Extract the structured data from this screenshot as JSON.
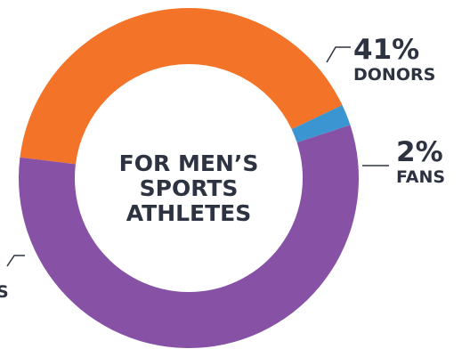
{
  "chart_data": {
    "type": "pie",
    "title": "",
    "center_label": [
      "FOR MEN’S",
      "SPORTS",
      "ATHLETES"
    ],
    "slices": [
      {
        "name": "DONORS",
        "value": 41,
        "display": "41%",
        "color": "#f37429"
      },
      {
        "name": "FANS",
        "value": 2,
        "display": "2%",
        "color": "#3b95d1"
      },
      {
        "name": "S",
        "value": 57,
        "display": "",
        "color": "#8752a6"
      }
    ]
  }
}
